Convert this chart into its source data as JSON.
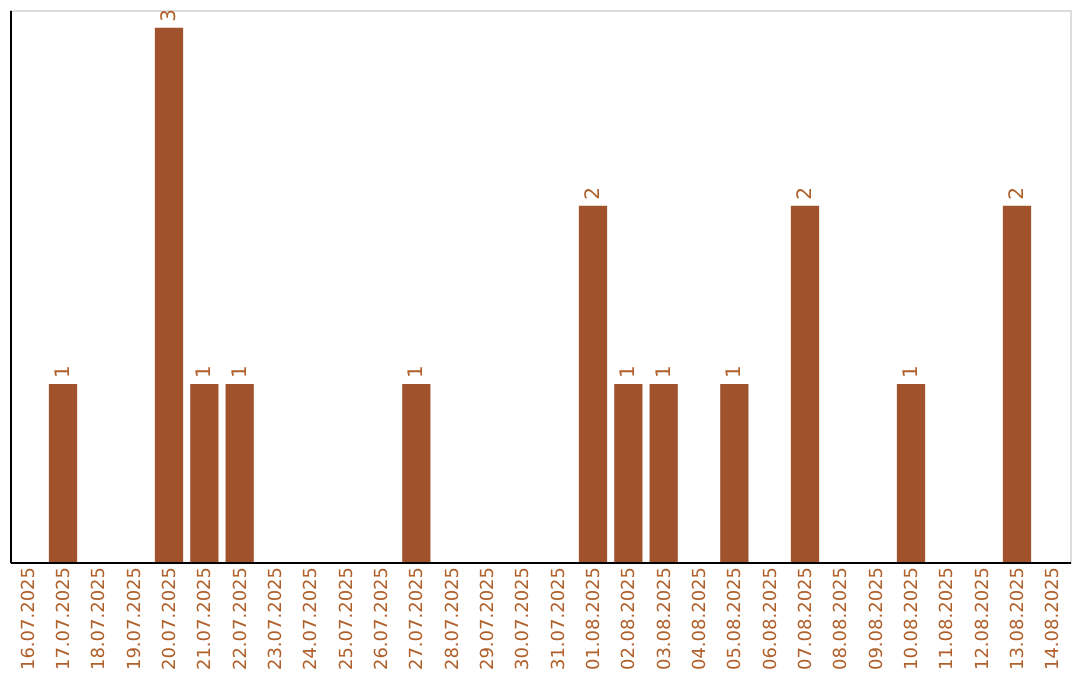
{
  "chart_data": {
    "type": "bar",
    "categories": [
      "16.07.2025",
      "17.07.2025",
      "18.07.2025",
      "19.07.2025",
      "20.07.2025",
      "21.07.2025",
      "22.07.2025",
      "23.07.2025",
      "24.07.2025",
      "25.07.2025",
      "26.07.2025",
      "27.07.2025",
      "28.07.2025",
      "29.07.2025",
      "30.07.2025",
      "31.07.2025",
      "01.08.2025",
      "02.08.2025",
      "03.08.2025",
      "04.08.2025",
      "05.08.2025",
      "06.08.2025",
      "07.08.2025",
      "08.08.2025",
      "09.08.2025",
      "10.08.2025",
      "11.08.2025",
      "12.08.2025",
      "13.08.2025",
      "14.08.2025"
    ],
    "values": [
      0,
      1,
      0,
      0,
      3,
      1,
      1,
      0,
      0,
      0,
      0,
      1,
      0,
      0,
      0,
      0,
      2,
      1,
      1,
      0,
      1,
      0,
      2,
      0,
      0,
      1,
      0,
      0,
      2,
      0
    ],
    "value_labels": [
      null,
      "1",
      null,
      null,
      "3",
      "1",
      "1",
      null,
      null,
      null,
      null,
      "1",
      null,
      null,
      null,
      null,
      "2",
      "1",
      "1",
      null,
      "1",
      null,
      "2",
      null,
      null,
      "1",
      null,
      null,
      "2",
      null
    ],
    "color": "#a0522d",
    "ylim": [
      0,
      3.1
    ],
    "tick_labels": "x",
    "grid": false
  }
}
